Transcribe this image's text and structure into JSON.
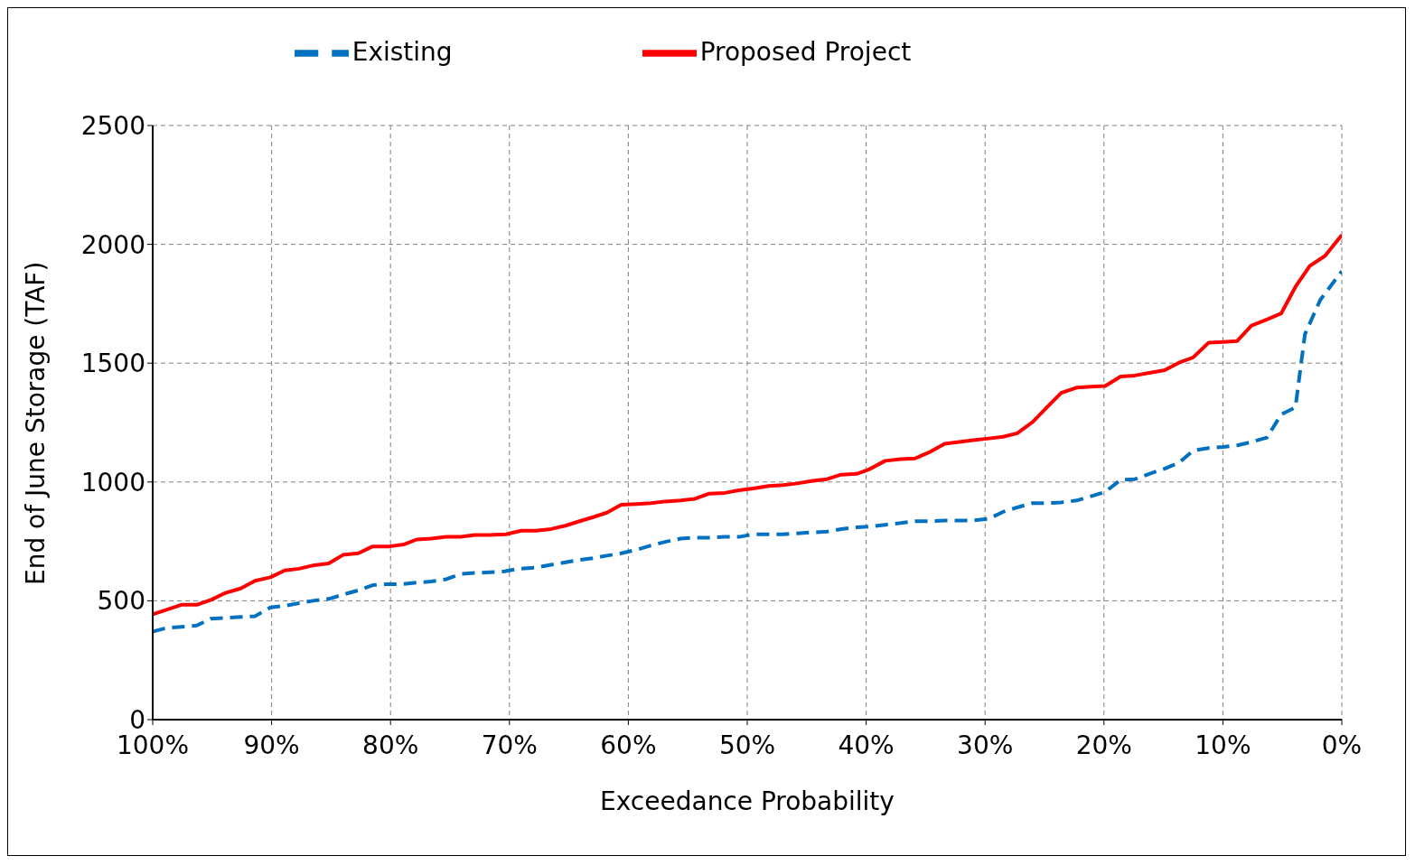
{
  "chart_data": {
    "type": "line",
    "xlabel": "Exceedance Probability",
    "ylabel": "End of  June Storage (TAF)",
    "xlim": [
      100,
      0
    ],
    "xticks": [
      {
        "value": 100,
        "label": "100%"
      },
      {
        "value": 90,
        "label": "90%"
      },
      {
        "value": 80,
        "label": "80%"
      },
      {
        "value": 70,
        "label": "70%"
      },
      {
        "value": 60,
        "label": "60%"
      },
      {
        "value": 50,
        "label": "50%"
      },
      {
        "value": 40,
        "label": "40%"
      },
      {
        "value": 30,
        "label": "30%"
      },
      {
        "value": 20,
        "label": "20%"
      },
      {
        "value": 10,
        "label": "10%"
      },
      {
        "value": 0,
        "label": "0%"
      }
    ],
    "ylim": [
      0,
      2500
    ],
    "yticks": [
      0,
      500,
      1000,
      1500,
      2000,
      2500
    ],
    "grid": true,
    "legend": "top",
    "marker": "none",
    "series": [
      {
        "name": "Existing",
        "color": "#0070c0",
        "line_style": "dashed",
        "x": [
          100,
          98.9,
          96.3,
          95.1,
          92.6,
          91.4,
          90.1,
          88.9,
          87.7,
          86.4,
          85.2,
          84.0,
          82.7,
          81.5,
          80.3,
          79.0,
          77.8,
          76.6,
          75.3,
          74.1,
          72.9,
          71.6,
          70.4,
          69.2,
          67.9,
          66.7,
          65.5,
          64.3,
          63.0,
          61.8,
          60.6,
          59.3,
          58.1,
          56.9,
          55.6,
          54.4,
          53.2,
          51.9,
          50.7,
          49.5,
          48.2,
          47.0,
          45.8,
          44.5,
          43.3,
          42.1,
          40.8,
          39.6,
          38.4,
          37.1,
          35.9,
          34.7,
          33.4,
          32.2,
          31.0,
          29.7,
          28.5,
          27.3,
          26.0,
          24.8,
          23.6,
          22.3,
          21.1,
          19.9,
          18.6,
          17.4,
          16.2,
          14.9,
          13.7,
          12.5,
          11.2,
          10.0,
          8.8,
          7.6,
          6.3,
          5.1,
          3.9,
          3.1,
          1.8,
          0
        ],
        "values": [
          370,
          385,
          396,
          425,
          432,
          435,
          472,
          479,
          490,
          501,
          508,
          526,
          544,
          566,
          570,
          570,
          577,
          581,
          591,
          613,
          617,
          620,
          624,
          635,
          639,
          650,
          660,
          671,
          679,
          690,
          700,
          715,
          733,
          748,
          762,
          766,
          766,
          769,
          769,
          780,
          780,
          780,
          784,
          788,
          791,
          802,
          809,
          813,
          820,
          827,
          835,
          835,
          838,
          838,
          838,
          845,
          874,
          893,
          911,
          911,
          914,
          922,
          940,
          958,
          1009,
          1012,
          1034,
          1056,
          1081,
          1132,
          1143,
          1147,
          1154,
          1168,
          1187,
          1284,
          1314,
          1622,
          1767,
          1887
        ]
      },
      {
        "name": "Proposed Project",
        "color": "#ff0000",
        "line_style": "solid",
        "x": [
          100,
          98.9,
          97.6,
          96.3,
          95.1,
          93.9,
          92.6,
          91.4,
          90.1,
          88.9,
          87.7,
          86.4,
          85.2,
          84.0,
          82.7,
          81.5,
          80.1,
          78.9,
          77.8,
          76.6,
          75.3,
          74.1,
          72.9,
          71.6,
          70.3,
          69.0,
          67.8,
          66.5,
          65.3,
          64.1,
          62.9,
          61.8,
          60.6,
          59.3,
          58.1,
          56.9,
          55.6,
          54.4,
          53.2,
          51.9,
          50.7,
          49.5,
          48.2,
          47.0,
          45.8,
          44.5,
          43.3,
          42.1,
          40.8,
          39.8,
          38.4,
          37.1,
          35.9,
          34.7,
          33.4,
          32.2,
          31.0,
          29.7,
          28.5,
          27.3,
          26.0,
          24.8,
          23.6,
          22.3,
          21.1,
          19.9,
          18.6,
          17.4,
          16.2,
          14.9,
          13.7,
          12.5,
          11.2,
          10.0,
          8.8,
          7.6,
          6.3,
          5.1,
          3.9,
          2.7,
          1.4,
          0
        ],
        "values": [
          443,
          461,
          483,
          483,
          504,
          533,
          552,
          584,
          599,
          628,
          635,
          650,
          657,
          693,
          700,
          729,
          729,
          737,
          758,
          762,
          769,
          769,
          777,
          777,
          780,
          795,
          795,
          802,
          816,
          835,
          853,
          871,
          904,
          907,
          911,
          918,
          922,
          929,
          951,
          954,
          965,
          973,
          983,
          987,
          994,
          1005,
          1012,
          1031,
          1034,
          1052,
          1089,
          1096,
          1099,
          1125,
          1161,
          1168,
          1176,
          1183,
          1190,
          1205,
          1252,
          1314,
          1375,
          1397,
          1401,
          1404,
          1444,
          1448,
          1459,
          1470,
          1502,
          1524,
          1586,
          1589,
          1593,
          1658,
          1684,
          1709,
          1821,
          1909,
          1952,
          2039
        ]
      }
    ]
  }
}
